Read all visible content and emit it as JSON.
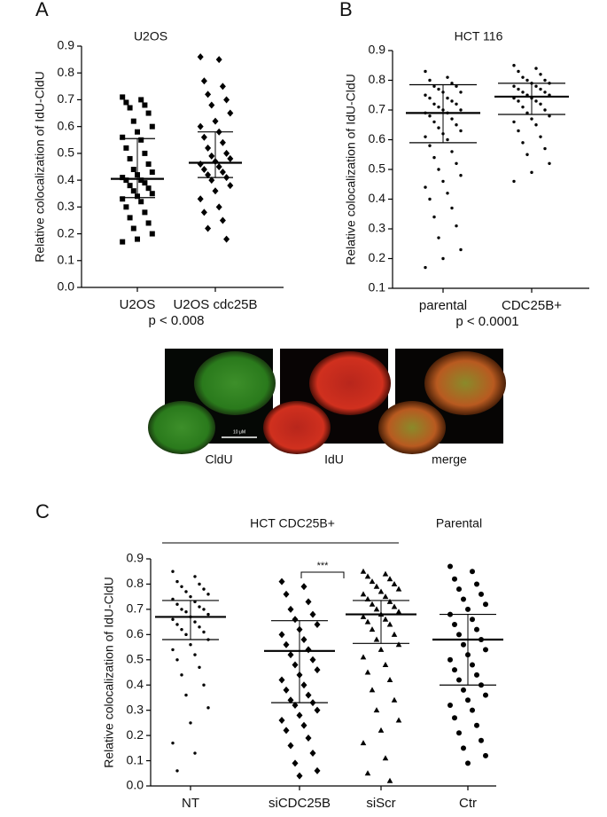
{
  "panel_labels": [
    "A",
    "B",
    "C"
  ],
  "images": {
    "captions": [
      "CldU",
      "IdU",
      "merge"
    ],
    "scale_bar": "10 μM"
  },
  "chart_data": [
    {
      "type": "dotplot",
      "title": "U2OS",
      "ylabel": "Relative colocalization of IdU-CldU",
      "note": "p < 0.008",
      "categories": [
        "U2OS",
        "U2OS cdc25B"
      ],
      "ylim": [
        0,
        0.9
      ],
      "yticks": [
        {
          "value": 0,
          "label": "0.0"
        },
        0.1,
        0.2,
        0.3,
        0.4,
        0.5,
        0.6,
        0.7,
        0.8,
        0.9
      ],
      "groups": [
        {
          "marker": "square",
          "color": "#000000",
          "center": 0.405,
          "low": 0.335,
          "high": 0.555,
          "values": [
            0.71,
            0.7,
            0.69,
            0.68,
            0.67,
            0.65,
            0.62,
            0.6,
            0.58,
            0.56,
            0.55,
            0.52,
            0.5,
            0.48,
            0.46,
            0.44,
            0.43,
            0.42,
            0.41,
            0.4,
            0.4,
            0.39,
            0.38,
            0.37,
            0.36,
            0.35,
            0.34,
            0.33,
            0.32,
            0.3,
            0.28,
            0.26,
            0.24,
            0.22,
            0.2,
            0.18,
            0.17
          ]
        },
        {
          "marker": "diamond",
          "color": "#000000",
          "center": 0.465,
          "low": 0.41,
          "high": 0.58,
          "values": [
            0.86,
            0.85,
            0.77,
            0.75,
            0.72,
            0.7,
            0.68,
            0.65,
            0.62,
            0.6,
            0.58,
            0.56,
            0.54,
            0.52,
            0.5,
            0.49,
            0.48,
            0.47,
            0.46,
            0.45,
            0.44,
            0.43,
            0.42,
            0.41,
            0.4,
            0.38,
            0.36,
            0.33,
            0.3,
            0.28,
            0.25,
            0.22,
            0.18
          ]
        }
      ]
    },
    {
      "type": "dotplot",
      "title": "HCT 116",
      "ylabel": "Relative colocalization of IdU-CldU",
      "note": "p < 0.0001",
      "categories": [
        "parental",
        "CDC25B+"
      ],
      "ylim": [
        0.1,
        0.9
      ],
      "yticks": [
        0.1,
        0.2,
        0.3,
        0.4,
        0.5,
        0.6,
        0.7,
        0.8,
        0.9
      ],
      "groups": [
        {
          "marker": "dot",
          "color": "#000000",
          "center": 0.69,
          "low": 0.59,
          "high": 0.785,
          "values": [
            0.83,
            0.81,
            0.8,
            0.79,
            0.78,
            0.78,
            0.77,
            0.76,
            0.76,
            0.75,
            0.74,
            0.74,
            0.73,
            0.72,
            0.72,
            0.71,
            0.7,
            0.7,
            0.69,
            0.69,
            0.68,
            0.67,
            0.66,
            0.65,
            0.64,
            0.63,
            0.62,
            0.61,
            0.6,
            0.58,
            0.56,
            0.54,
            0.52,
            0.5,
            0.48,
            0.46,
            0.44,
            0.42,
            0.4,
            0.37,
            0.34,
            0.31,
            0.27,
            0.23,
            0.2,
            0.17
          ]
        },
        {
          "marker": "dot",
          "color": "#000000",
          "center": 0.745,
          "low": 0.685,
          "high": 0.79,
          "values": [
            0.85,
            0.84,
            0.83,
            0.82,
            0.81,
            0.8,
            0.8,
            0.79,
            0.79,
            0.78,
            0.78,
            0.77,
            0.77,
            0.76,
            0.76,
            0.75,
            0.75,
            0.74,
            0.74,
            0.73,
            0.73,
            0.72,
            0.71,
            0.7,
            0.69,
            0.68,
            0.67,
            0.66,
            0.65,
            0.63,
            0.61,
            0.59,
            0.57,
            0.55,
            0.52,
            0.49,
            0.46
          ]
        }
      ]
    },
    {
      "type": "dotplot",
      "ylabel": "Relative colocalization of IdU-CldU",
      "group_labels": [
        "HCT CDC25B+",
        "Parental"
      ],
      "significance": "***",
      "categories": [
        "NT",
        "siCDC25B",
        "siScr",
        "Ctr"
      ],
      "ylim": [
        0,
        0.9
      ],
      "yticks": [
        {
          "value": 0,
          "label": "0.0"
        },
        0.1,
        0.2,
        0.3,
        0.4,
        0.5,
        0.6,
        0.7,
        0.8,
        0.9
      ],
      "groups": [
        {
          "marker": "dot",
          "color": "#000000",
          "center": 0.67,
          "low": 0.58,
          "high": 0.735,
          "values": [
            0.85,
            0.83,
            0.81,
            0.8,
            0.79,
            0.78,
            0.77,
            0.76,
            0.75,
            0.74,
            0.73,
            0.72,
            0.71,
            0.7,
            0.7,
            0.69,
            0.68,
            0.67,
            0.66,
            0.65,
            0.64,
            0.63,
            0.62,
            0.61,
            0.6,
            0.58,
            0.56,
            0.54,
            0.52,
            0.5,
            0.47,
            0.44,
            0.4,
            0.36,
            0.31,
            0.25,
            0.17,
            0.13,
            0.06
          ]
        },
        {
          "marker": "diamond",
          "color": "#000000",
          "center": 0.535,
          "low": 0.33,
          "high": 0.655,
          "values": [
            0.81,
            0.79,
            0.76,
            0.73,
            0.7,
            0.68,
            0.66,
            0.64,
            0.62,
            0.6,
            0.58,
            0.56,
            0.54,
            0.52,
            0.5,
            0.48,
            0.46,
            0.44,
            0.42,
            0.4,
            0.38,
            0.36,
            0.34,
            0.33,
            0.32,
            0.3,
            0.28,
            0.26,
            0.24,
            0.22,
            0.19,
            0.16,
            0.13,
            0.09,
            0.06,
            0.04
          ]
        },
        {
          "marker": "triangle",
          "color": "#000000",
          "center": 0.68,
          "low": 0.565,
          "high": 0.735,
          "values": [
            0.85,
            0.84,
            0.83,
            0.82,
            0.81,
            0.8,
            0.79,
            0.78,
            0.77,
            0.76,
            0.75,
            0.74,
            0.73,
            0.72,
            0.71,
            0.7,
            0.69,
            0.68,
            0.67,
            0.66,
            0.65,
            0.64,
            0.62,
            0.6,
            0.58,
            0.56,
            0.54,
            0.51,
            0.48,
            0.45,
            0.42,
            0.38,
            0.34,
            0.3,
            0.26,
            0.22,
            0.17,
            0.11,
            0.05,
            0.02
          ]
        },
        {
          "marker": "circle",
          "color": "#000000",
          "center": 0.58,
          "low": 0.4,
          "high": 0.68,
          "values": [
            0.87,
            0.85,
            0.82,
            0.8,
            0.78,
            0.76,
            0.74,
            0.72,
            0.7,
            0.68,
            0.66,
            0.64,
            0.62,
            0.6,
            0.58,
            0.56,
            0.54,
            0.52,
            0.5,
            0.48,
            0.46,
            0.44,
            0.42,
            0.4,
            0.38,
            0.36,
            0.34,
            0.32,
            0.3,
            0.27,
            0.24,
            0.21,
            0.18,
            0.15,
            0.12,
            0.09
          ]
        }
      ]
    }
  ]
}
